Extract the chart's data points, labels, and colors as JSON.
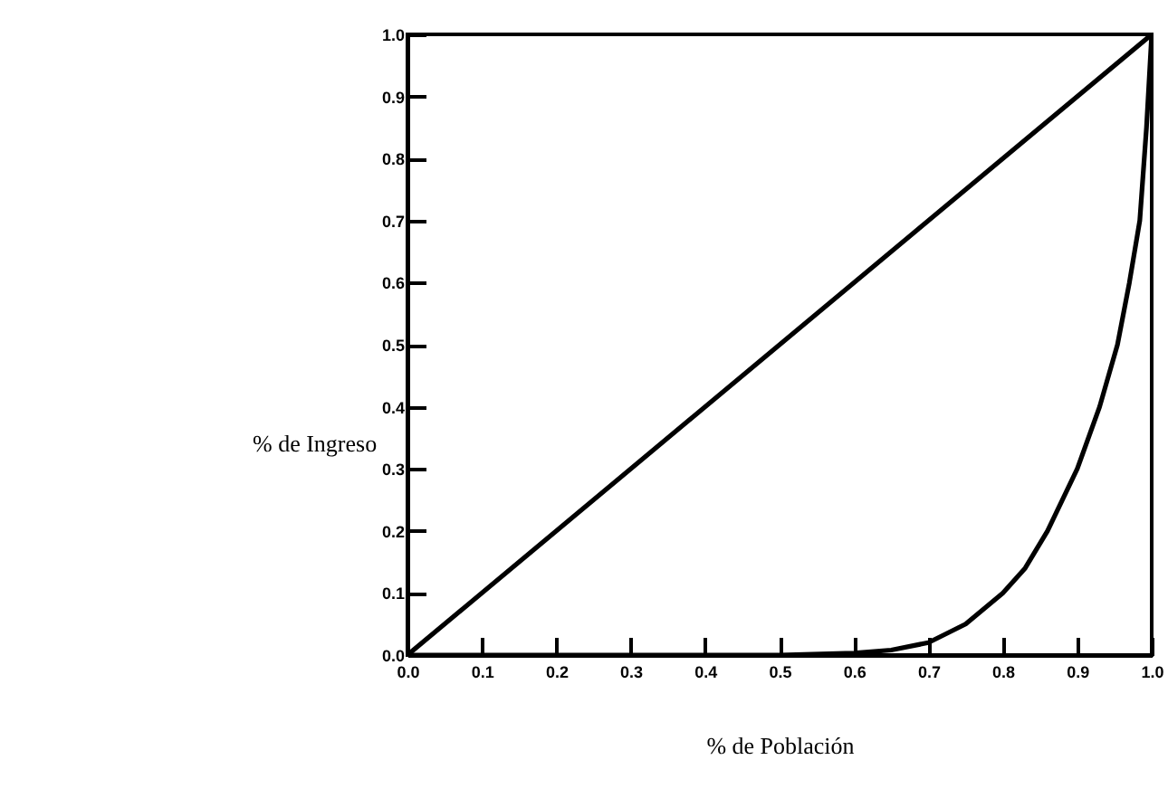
{
  "chart_data": {
    "type": "line",
    "xlabel": "% de Población",
    "ylabel": "% de Ingreso",
    "series": [
      {
        "color": "#000000",
        "x": [
          0,
          1
        ],
        "values": [
          0,
          1
        ]
      },
      {
        "color": "#000000",
        "x": [
          0,
          0.3,
          0.5,
          0.6,
          0.65,
          0.7,
          0.75,
          0.8,
          0.83,
          0.86,
          0.9,
          0.93,
          0.954,
          0.97,
          0.984,
          0.993,
          1.0
        ],
        "values": [
          0,
          0,
          0,
          0.003,
          0.008,
          0.02,
          0.05,
          0.1,
          0.14,
          0.2,
          0.3,
          0.4,
          0.5,
          0.6,
          0.7,
          0.85,
          1.0
        ]
      }
    ],
    "xlim": [
      0,
      1
    ],
    "ylim": [
      0,
      1
    ],
    "xticks": [
      {
        "value": 0,
        "label": "0.0"
      },
      0.1,
      0.2,
      0.3,
      0.4,
      0.5,
      0.6,
      0.7,
      0.8,
      0.9,
      {
        "value": 1,
        "label": "1.0"
      }
    ],
    "yticks": [
      {
        "value": 0,
        "label": "0.0"
      },
      0.1,
      0.2,
      0.3,
      0.4,
      0.5,
      0.6,
      0.7,
      0.8,
      0.9,
      {
        "value": 1,
        "label": "1.0"
      }
    ],
    "grid": false,
    "marker": "none",
    "line_style": "solid"
  }
}
